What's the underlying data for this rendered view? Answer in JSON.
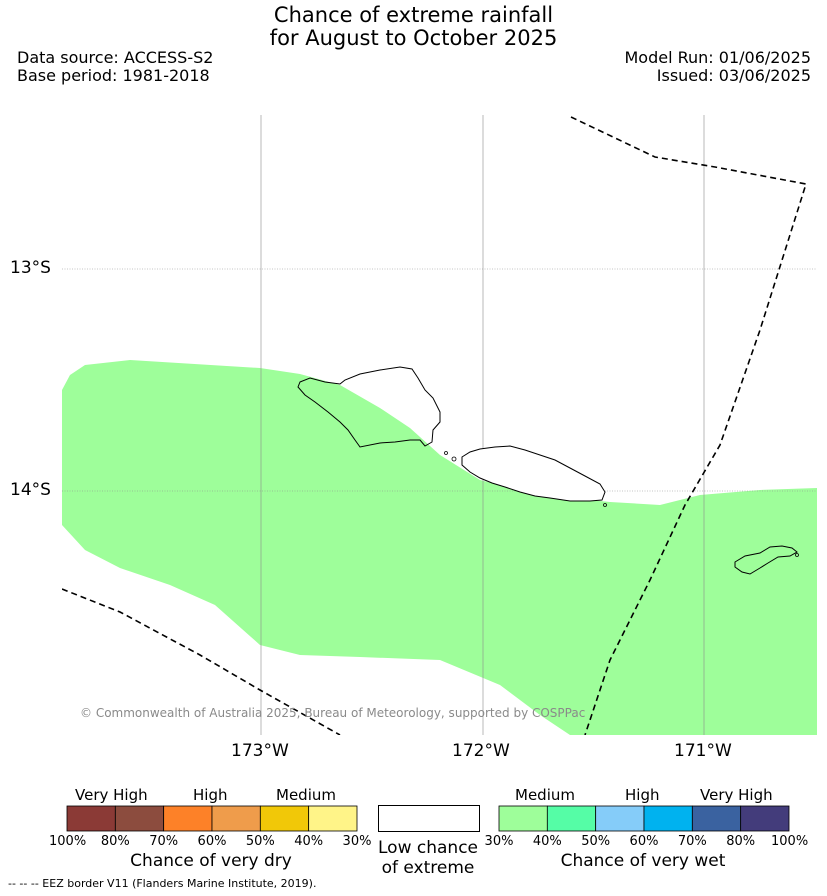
{
  "header": {
    "title_line1": "Chance of extreme rainfall",
    "title_line2": "for August to October 2025",
    "data_source": "Data source: ACCESS-S2",
    "base_period": "Base period: 1981-2018",
    "model_run": "Model Run: 01/06/2025",
    "issued": "Issued: 03/06/2025"
  },
  "map": {
    "lat_labels": [
      "13°S",
      "14°S"
    ],
    "lon_labels": [
      "173°W",
      "172°W",
      "171°W"
    ],
    "copyright": "© Commonwealth of Australia 2025, Bureau of Meteorology, supported by COSPPac",
    "field_color": "#9efe9a"
  },
  "legend": {
    "dry": {
      "headers": [
        "Very High",
        "High",
        "Medium"
      ],
      "colors": [
        "#8b3a36",
        "#8c4c3e",
        "#fd8128",
        "#ef9c4b",
        "#f1c808",
        "#fff488"
      ],
      "ticks": [
        "100%",
        "80%",
        "70%",
        "60%",
        "50%",
        "40%",
        "30%"
      ],
      "caption": "Chance of very dry"
    },
    "low": {
      "color": "#ffffff",
      "caption_line1": "Low chance",
      "caption_line2": "of extreme"
    },
    "wet": {
      "headers": [
        "Medium",
        "High",
        "Very High"
      ],
      "colors": [
        "#9efe9a",
        "#55fda6",
        "#85ccf9",
        "#00b2ef",
        "#3a62a0",
        "#433c7b"
      ],
      "ticks": [
        "30%",
        "40%",
        "50%",
        "60%",
        "70%",
        "80%",
        "100%"
      ],
      "caption": "Chance of very wet"
    }
  },
  "footnote": "--  --  -- EEZ border V11 (Flanders Marine Institute, 2019)."
}
